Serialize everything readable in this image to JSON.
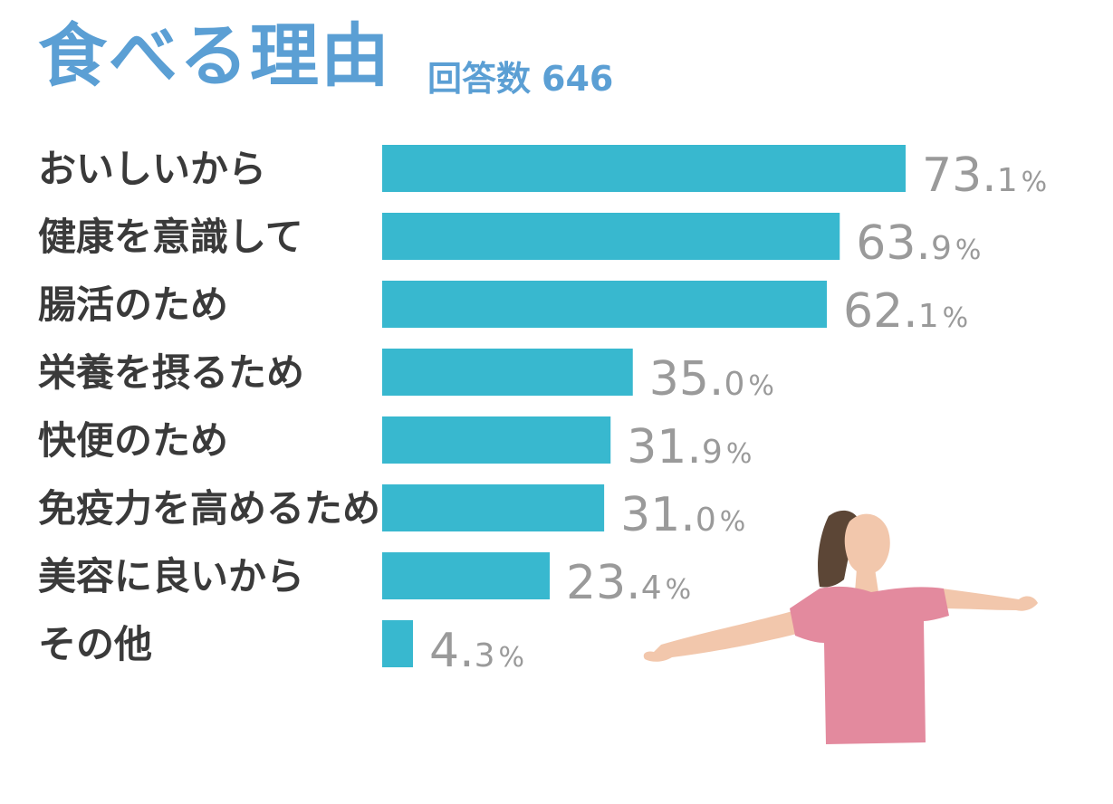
{
  "header": {
    "title": "食べる理由",
    "count_label": "回答数",
    "count_value": "646"
  },
  "chart_data": {
    "type": "bar",
    "orientation": "horizontal",
    "title": "食べる理由",
    "categories": [
      "おいしいから",
      "健康を意識して",
      "腸活のため",
      "栄養を摂るため",
      "快便のため",
      "免疫力を高めるため",
      "美容に良いから",
      "その他"
    ],
    "values": [
      73.1,
      63.9,
      62.1,
      35.0,
      31.9,
      31.0,
      23.4,
      4.3
    ],
    "value_labels": [
      {
        "int": "73.",
        "dec": "1",
        "unit": "%"
      },
      {
        "int": "63.",
        "dec": "9",
        "unit": "%"
      },
      {
        "int": "62.",
        "dec": "1",
        "unit": "%"
      },
      {
        "int": "35.",
        "dec": "0",
        "unit": "%"
      },
      {
        "int": "31.",
        "dec": "9",
        "unit": "%"
      },
      {
        "int": "31.",
        "dec": "0",
        "unit": "%"
      },
      {
        "int": "23.",
        "dec": "4",
        "unit": "%"
      },
      {
        "int": "4.",
        "dec": "3",
        "unit": "%"
      }
    ],
    "unit": "%",
    "bar_color": "#38b8cf",
    "label_color": "#9a9a9a",
    "grid": false,
    "legend": "none"
  },
  "colors": {
    "title": "#5b9fd4",
    "category_text": "#3a3a3a",
    "shirt": "#e38a9e",
    "skin": "#f2c7ac",
    "hair": "#5c4636"
  }
}
